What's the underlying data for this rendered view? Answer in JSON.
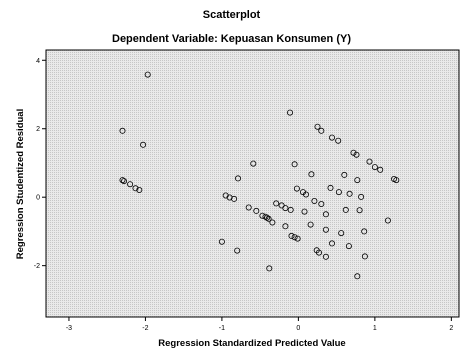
{
  "chart_data": {
    "type": "scatter",
    "title": "Scatterplot",
    "subtitle": "Dependent Variable: Kepuasan Konsumen (Y)",
    "xlabel": "Regression Standardized Predicted Value",
    "ylabel": "Regression Studentized Residual",
    "xlim": [
      -3.3,
      2.1
    ],
    "ylim": [
      -3.5,
      4.3
    ],
    "xticks": [
      -3,
      -2,
      -1,
      0,
      1,
      2
    ],
    "yticks": [
      -2,
      0,
      2,
      4
    ],
    "xtick_labels": [
      "-3",
      "-2",
      "-1",
      "0",
      "1",
      "2"
    ],
    "ytick_labels": [
      "-2",
      "0",
      "2",
      "4"
    ],
    "grid": false,
    "legend": "none",
    "points": [
      {
        "x": -1.97,
        "y": 3.58
      },
      {
        "x": -2.3,
        "y": 1.94
      },
      {
        "x": -2.03,
        "y": 1.53
      },
      {
        "x": -2.3,
        "y": 0.5
      },
      {
        "x": -2.28,
        "y": 0.47
      },
      {
        "x": -2.2,
        "y": 0.38
      },
      {
        "x": -2.13,
        "y": 0.26
      },
      {
        "x": -2.08,
        "y": 0.21
      },
      {
        "x": -0.11,
        "y": 2.47
      },
      {
        "x": 0.25,
        "y": 2.06
      },
      {
        "x": 0.3,
        "y": 1.94
      },
      {
        "x": 0.44,
        "y": 1.74
      },
      {
        "x": 0.52,
        "y": 1.65
      },
      {
        "x": 0.72,
        "y": 1.3
      },
      {
        "x": 0.76,
        "y": 1.24
      },
      {
        "x": 0.93,
        "y": 1.04
      },
      {
        "x": 1.0,
        "y": 0.88
      },
      {
        "x": 1.07,
        "y": 0.8
      },
      {
        "x": 1.25,
        "y": 0.53
      },
      {
        "x": 1.28,
        "y": 0.5
      },
      {
        "x": -0.59,
        "y": 0.98
      },
      {
        "x": -0.05,
        "y": 0.96
      },
      {
        "x": 0.6,
        "y": 0.65
      },
      {
        "x": 0.77,
        "y": 0.5
      },
      {
        "x": 0.17,
        "y": 0.67
      },
      {
        "x": 0.42,
        "y": 0.27
      },
      {
        "x": 0.53,
        "y": 0.15
      },
      {
        "x": 0.67,
        "y": 0.1
      },
      {
        "x": 0.82,
        "y": 0.01
      },
      {
        "x": -0.79,
        "y": 0.55
      },
      {
        "x": -0.02,
        "y": 0.25
      },
      {
        "x": 0.06,
        "y": 0.15
      },
      {
        "x": 0.1,
        "y": 0.08
      },
      {
        "x": 0.21,
        "y": -0.11
      },
      {
        "x": -0.95,
        "y": 0.05
      },
      {
        "x": -0.9,
        "y": -0.01
      },
      {
        "x": -0.84,
        "y": -0.05
      },
      {
        "x": -0.65,
        "y": -0.3
      },
      {
        "x": -0.55,
        "y": -0.4
      },
      {
        "x": -0.47,
        "y": -0.54
      },
      {
        "x": -0.43,
        "y": -0.57
      },
      {
        "x": -0.41,
        "y": -0.6
      },
      {
        "x": -0.39,
        "y": -0.63
      },
      {
        "x": -0.29,
        "y": -0.18
      },
      {
        "x": -0.22,
        "y": -0.24
      },
      {
        "x": -0.17,
        "y": -0.32
      },
      {
        "x": -0.1,
        "y": -0.37
      },
      {
        "x": 0.08,
        "y": -0.42
      },
      {
        "x": 0.3,
        "y": -0.2
      },
      {
        "x": 0.36,
        "y": -0.5
      },
      {
        "x": 0.62,
        "y": -0.37
      },
      {
        "x": 0.8,
        "y": -0.38
      },
      {
        "x": 1.17,
        "y": -0.68
      },
      {
        "x": -0.34,
        "y": -0.74
      },
      {
        "x": -0.17,
        "y": -0.85
      },
      {
        "x": -0.09,
        "y": -1.13
      },
      {
        "x": -0.05,
        "y": -1.17
      },
      {
        "x": -0.01,
        "y": -1.21
      },
      {
        "x": 0.16,
        "y": -0.8
      },
      {
        "x": 0.36,
        "y": -0.95
      },
      {
        "x": 0.56,
        "y": -1.05
      },
      {
        "x": -1.0,
        "y": -1.3
      },
      {
        "x": -0.8,
        "y": -1.56
      },
      {
        "x": 0.24,
        "y": -1.55
      },
      {
        "x": 0.27,
        "y": -1.62
      },
      {
        "x": 0.44,
        "y": -1.35
      },
      {
        "x": 0.66,
        "y": -1.43
      },
      {
        "x": 0.36,
        "y": -1.74
      },
      {
        "x": 0.86,
        "y": -1.0
      },
      {
        "x": 0.87,
        "y": -1.73
      },
      {
        "x": -0.38,
        "y": -2.08
      },
      {
        "x": 0.77,
        "y": -2.31
      }
    ]
  }
}
